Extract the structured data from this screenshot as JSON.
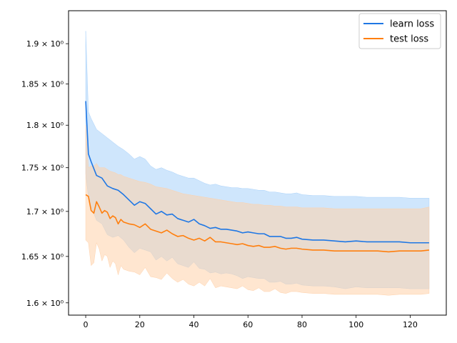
{
  "chart_data": {
    "type": "line",
    "xlim": [
      -6.35,
      133.35
    ],
    "ylim": [
      1.587,
      1.942
    ],
    "y_scale": "log",
    "x_ticks": [
      0,
      20,
      40,
      60,
      80,
      100,
      120
    ],
    "x_tick_labels": [
      "0",
      "20",
      "40",
      "60",
      "80",
      "100",
      "120"
    ],
    "y_ticks": [
      1.6,
      1.65,
      1.7,
      1.75,
      1.8,
      1.85,
      1.9
    ],
    "y_tick_labels": [
      "1.6 × 10⁰",
      "1.65 × 10⁰",
      "1.7 × 10⁰",
      "1.75 × 10⁰",
      "1.8 × 10⁰",
      "1.85 × 10⁰",
      "1.9 × 10⁰"
    ],
    "grid": false,
    "legend_position": "top-right",
    "series": [
      {
        "name": "learn loss",
        "color": "#1f77e4",
        "band_color": "#a8d1fa",
        "x": [
          0,
          1,
          2,
          4,
          6,
          8,
          10,
          12,
          14,
          16,
          18,
          20,
          22,
          24,
          26,
          28,
          30,
          32,
          34,
          36,
          38,
          40,
          42,
          44,
          46,
          48,
          50,
          52,
          54,
          56,
          58,
          60,
          62,
          64,
          66,
          68,
          70,
          72,
          74,
          76,
          78,
          80,
          84,
          88,
          92,
          96,
          100,
          104,
          108,
          112,
          116,
          120,
          124,
          127
        ],
        "mean": [
          1.829,
          1.766,
          1.757,
          1.741,
          1.738,
          1.729,
          1.726,
          1.724,
          1.719,
          1.713,
          1.707,
          1.711,
          1.709,
          1.703,
          1.697,
          1.7,
          1.696,
          1.697,
          1.692,
          1.69,
          1.688,
          1.691,
          1.686,
          1.684,
          1.681,
          1.682,
          1.68,
          1.68,
          1.679,
          1.678,
          1.676,
          1.677,
          1.676,
          1.675,
          1.675,
          1.672,
          1.672,
          1.672,
          1.67,
          1.67,
          1.671,
          1.669,
          1.668,
          1.668,
          1.667,
          1.666,
          1.667,
          1.666,
          1.666,
          1.666,
          1.666,
          1.665,
          1.665,
          1.665
        ],
        "upper": [
          1.916,
          1.816,
          1.808,
          1.795,
          1.79,
          1.785,
          1.78,
          1.775,
          1.771,
          1.766,
          1.76,
          1.763,
          1.76,
          1.752,
          1.748,
          1.75,
          1.747,
          1.745,
          1.742,
          1.74,
          1.738,
          1.738,
          1.735,
          1.732,
          1.73,
          1.731,
          1.729,
          1.728,
          1.727,
          1.727,
          1.726,
          1.726,
          1.725,
          1.724,
          1.724,
          1.722,
          1.722,
          1.721,
          1.72,
          1.72,
          1.721,
          1.719,
          1.718,
          1.718,
          1.717,
          1.717,
          1.717,
          1.716,
          1.716,
          1.716,
          1.716,
          1.715,
          1.715,
          1.715
        ],
        "lower": [
          1.743,
          1.716,
          1.705,
          1.69,
          1.686,
          1.674,
          1.671,
          1.673,
          1.668,
          1.66,
          1.654,
          1.659,
          1.657,
          1.655,
          1.646,
          1.65,
          1.645,
          1.649,
          1.642,
          1.64,
          1.638,
          1.644,
          1.637,
          1.636,
          1.632,
          1.633,
          1.631,
          1.632,
          1.631,
          1.629,
          1.626,
          1.628,
          1.627,
          1.626,
          1.626,
          1.622,
          1.622,
          1.623,
          1.62,
          1.62,
          1.621,
          1.619,
          1.618,
          1.618,
          1.617,
          1.615,
          1.617,
          1.616,
          1.616,
          1.616,
          1.616,
          1.615,
          1.615,
          1.615
        ]
      },
      {
        "name": "test loss",
        "color": "#ff7f0e",
        "band_color": "#ffd1aa",
        "x": [
          0,
          1,
          2,
          3,
          4,
          5,
          6,
          7,
          8,
          9,
          10,
          11,
          12,
          13,
          14,
          16,
          18,
          20,
          22,
          24,
          26,
          28,
          30,
          32,
          34,
          36,
          38,
          40,
          42,
          44,
          46,
          48,
          50,
          52,
          54,
          56,
          58,
          60,
          62,
          64,
          66,
          68,
          70,
          72,
          74,
          76,
          78,
          80,
          84,
          88,
          92,
          96,
          100,
          104,
          108,
          112,
          116,
          120,
          124,
          127
        ],
        "mean": [
          1.719,
          1.717,
          1.701,
          1.698,
          1.711,
          1.705,
          1.698,
          1.701,
          1.699,
          1.692,
          1.695,
          1.693,
          1.686,
          1.691,
          1.688,
          1.686,
          1.685,
          1.682,
          1.686,
          1.68,
          1.678,
          1.676,
          1.679,
          1.675,
          1.672,
          1.673,
          1.67,
          1.668,
          1.67,
          1.667,
          1.671,
          1.666,
          1.666,
          1.665,
          1.664,
          1.663,
          1.664,
          1.662,
          1.661,
          1.662,
          1.66,
          1.66,
          1.661,
          1.659,
          1.658,
          1.659,
          1.659,
          1.658,
          1.657,
          1.657,
          1.656,
          1.656,
          1.656,
          1.656,
          1.656,
          1.655,
          1.656,
          1.656,
          1.656,
          1.657
        ],
        "upper": [
          1.8,
          1.75,
          1.752,
          1.752,
          1.755,
          1.75,
          1.75,
          1.75,
          1.748,
          1.746,
          1.745,
          1.744,
          1.742,
          1.742,
          1.74,
          1.738,
          1.736,
          1.734,
          1.733,
          1.731,
          1.728,
          1.727,
          1.726,
          1.724,
          1.722,
          1.72,
          1.719,
          1.718,
          1.717,
          1.716,
          1.715,
          1.714,
          1.713,
          1.712,
          1.711,
          1.71,
          1.71,
          1.709,
          1.708,
          1.708,
          1.707,
          1.707,
          1.706,
          1.706,
          1.705,
          1.705,
          1.705,
          1.704,
          1.704,
          1.704,
          1.703,
          1.703,
          1.703,
          1.703,
          1.703,
          1.703,
          1.703,
          1.703,
          1.703,
          1.705
        ],
        "lower": [
          1.668,
          1.665,
          1.64,
          1.643,
          1.665,
          1.658,
          1.645,
          1.652,
          1.65,
          1.638,
          1.645,
          1.642,
          1.63,
          1.64,
          1.636,
          1.634,
          1.633,
          1.63,
          1.638,
          1.628,
          1.627,
          1.625,
          1.632,
          1.626,
          1.622,
          1.625,
          1.62,
          1.618,
          1.622,
          1.618,
          1.626,
          1.616,
          1.618,
          1.617,
          1.616,
          1.615,
          1.618,
          1.614,
          1.613,
          1.616,
          1.612,
          1.612,
          1.615,
          1.611,
          1.61,
          1.612,
          1.612,
          1.611,
          1.61,
          1.61,
          1.609,
          1.609,
          1.609,
          1.609,
          1.609,
          1.608,
          1.609,
          1.609,
          1.609,
          1.61
        ]
      }
    ]
  }
}
